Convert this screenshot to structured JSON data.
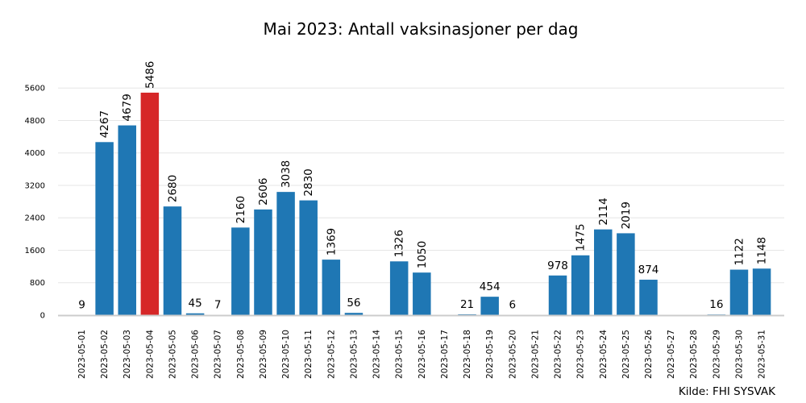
{
  "chart_data": {
    "type": "bar",
    "title": "Mai 2023: Antall vaksinasjoner per dag",
    "source": "Kilde: FHI SYSVAK",
    "xlabel": "",
    "ylabel": "",
    "ylim": [
      0,
      6300
    ],
    "yticks": [
      0,
      800,
      1600,
      2400,
      3200,
      4000,
      4800,
      5600
    ],
    "grid": true,
    "legend": "none",
    "colors": {
      "bar": "#1f77b4",
      "highlight": "#d62728",
      "grid": "#e6e6e6",
      "axis": "#cccccc"
    },
    "highlight_index": 3,
    "categories": [
      "2023-05-01",
      "2023-05-02",
      "2023-05-03",
      "2023-05-04",
      "2023-05-05",
      "2023-05-06",
      "2023-05-07",
      "2023-05-08",
      "2023-05-09",
      "2023-05-10",
      "2023-05-11",
      "2023-05-12",
      "2023-05-13",
      "2023-05-14",
      "2023-05-15",
      "2023-05-16",
      "2023-05-17",
      "2023-05-18",
      "2023-05-19",
      "2023-05-20",
      "2023-05-21",
      "2023-05-22",
      "2023-05-23",
      "2023-05-24",
      "2023-05-25",
      "2023-05-26",
      "2023-05-27",
      "2023-05-28",
      "2023-05-29",
      "2023-05-30",
      "2023-05-31"
    ],
    "values": [
      9,
      4267,
      4679,
      5486,
      2680,
      45,
      7,
      2160,
      2606,
      3038,
      2830,
      1369,
      56,
      0,
      1326,
      1050,
      0,
      21,
      454,
      6,
      0,
      978,
      1475,
      2114,
      2019,
      874,
      0,
      0,
      16,
      1122,
      1148
    ],
    "labels": [
      "9",
      "4267",
      "4679",
      "5486",
      "2680",
      "45",
      "7",
      "2160",
      "2606",
      "3038",
      "2830",
      "1369",
      "56",
      "",
      "1326",
      "1050",
      "",
      "21",
      "454",
      "6",
      "",
      "978",
      "1475",
      "2114",
      "2019",
      "874",
      "",
      "",
      "16",
      "1122",
      "1148"
    ]
  }
}
